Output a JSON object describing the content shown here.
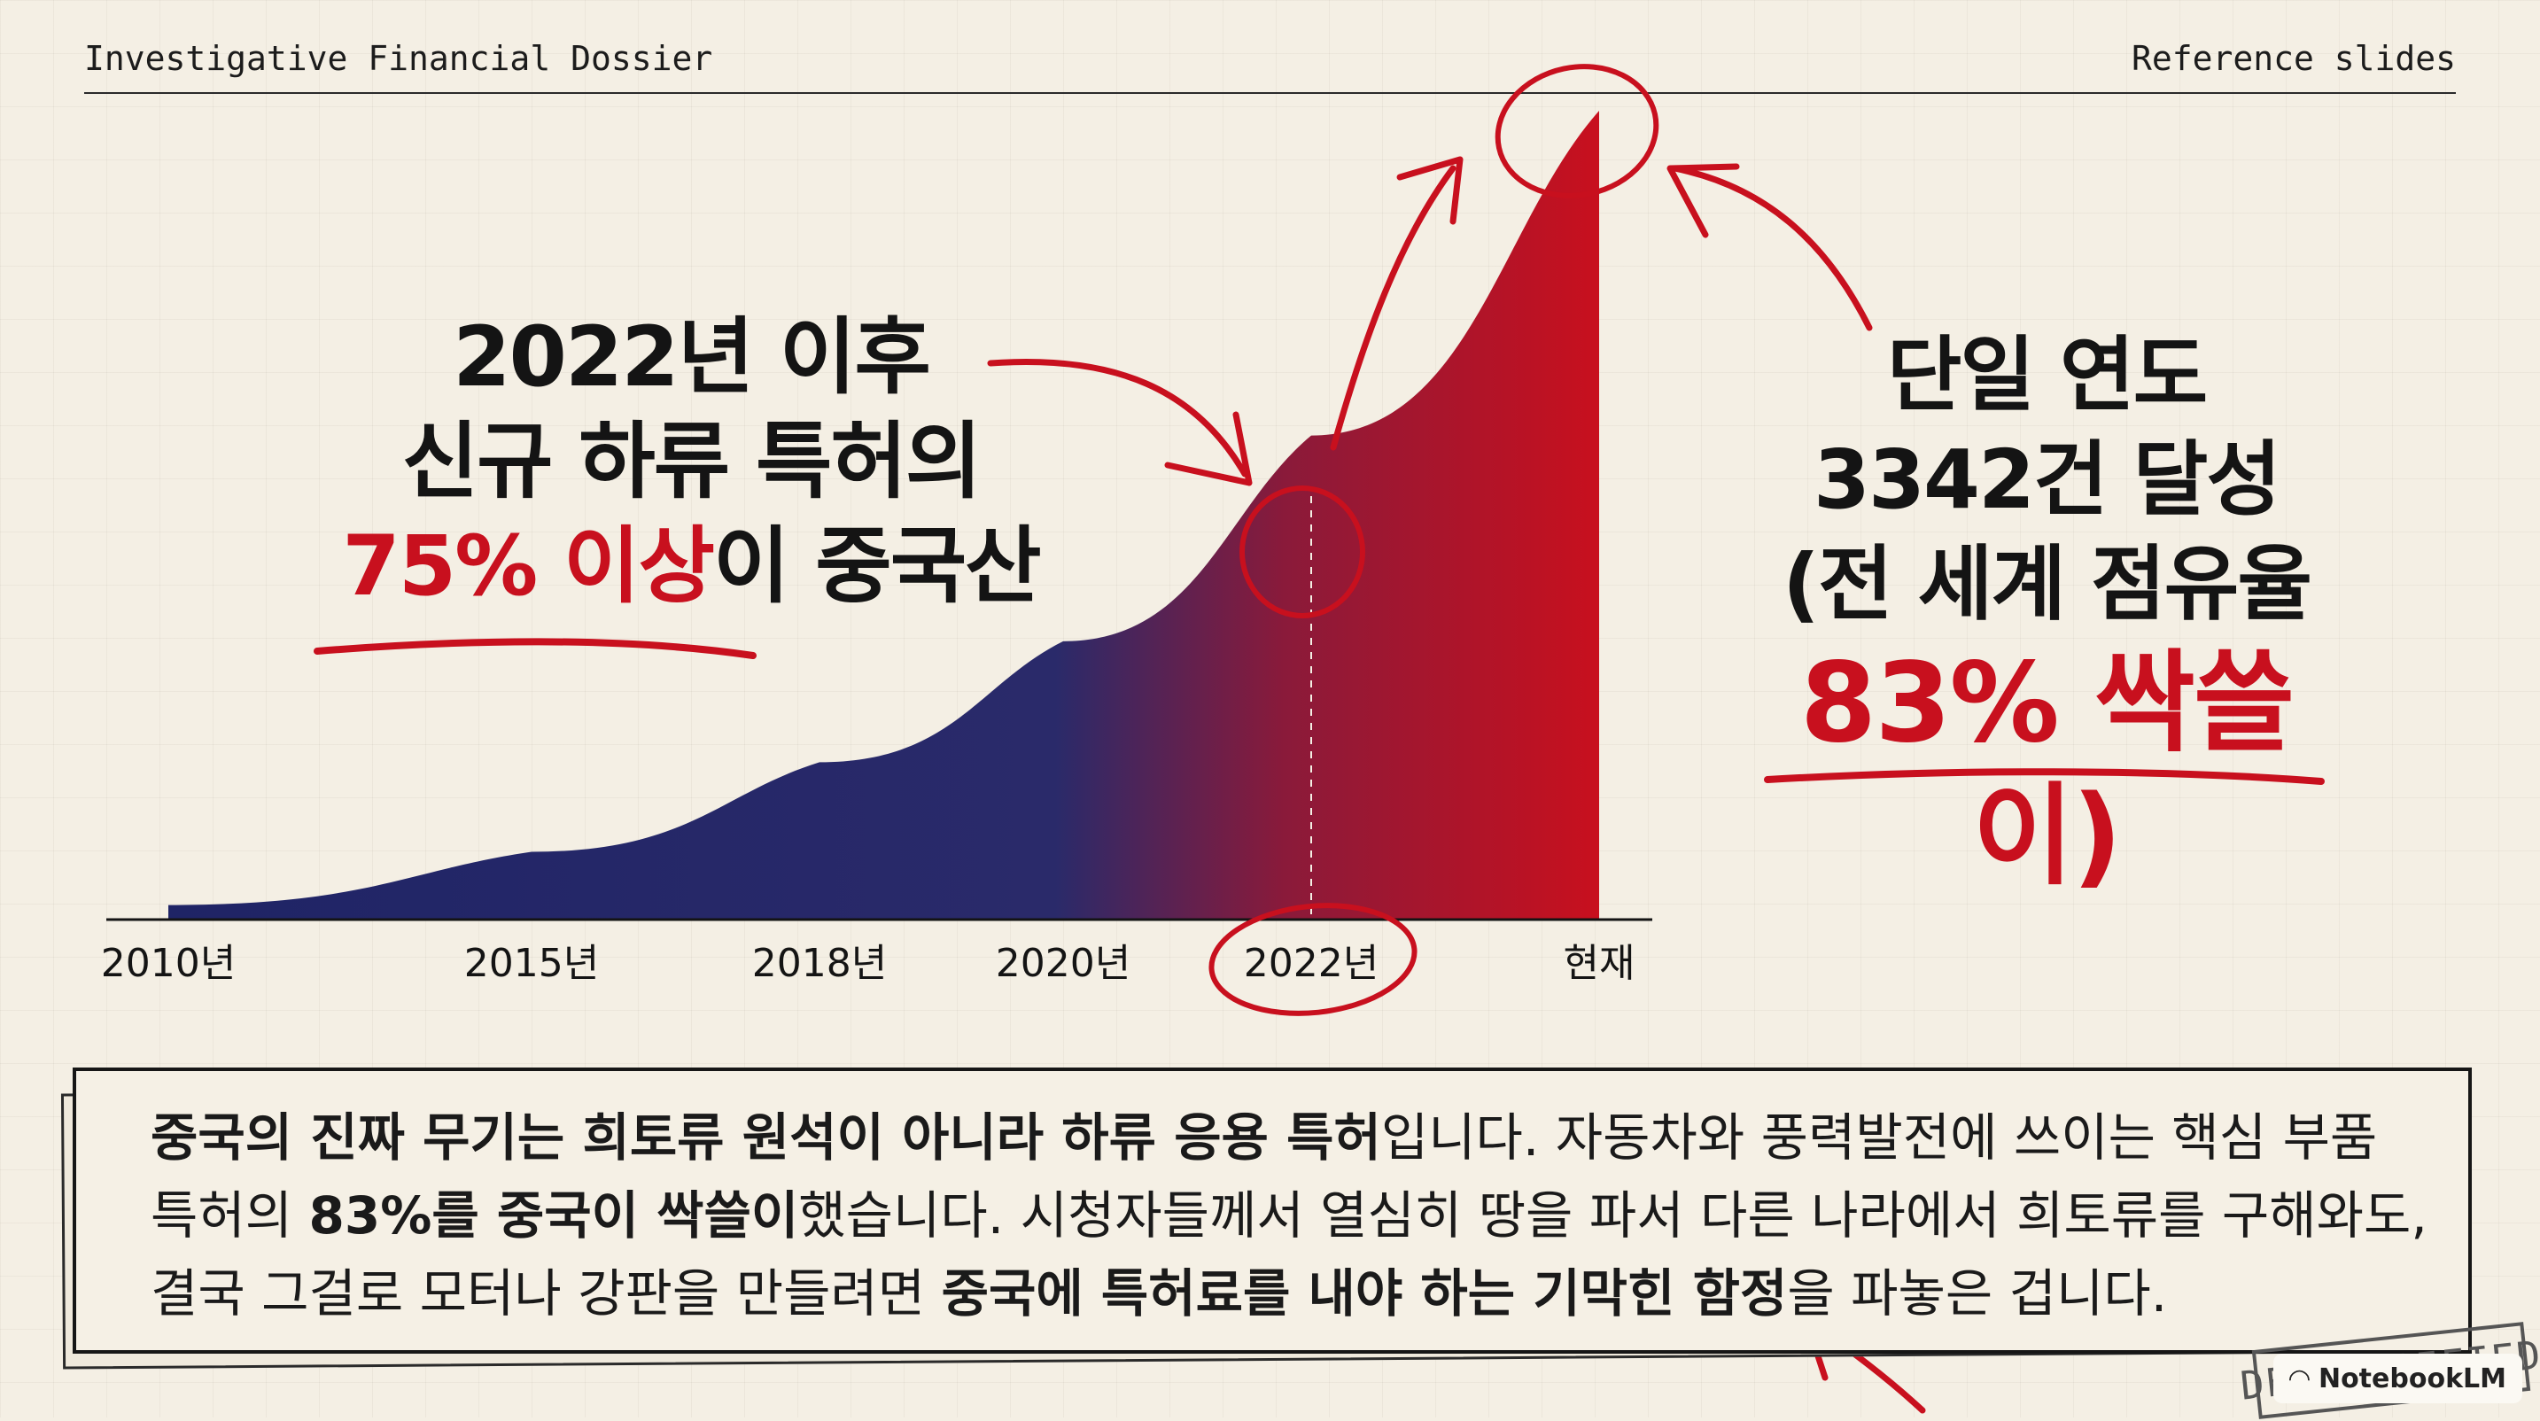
{
  "header": {
    "title": "Investigative Financial Dossier",
    "right": "Reference slides"
  },
  "callout_left": {
    "line1": "2022년 이후",
    "line2": "신규 하류 특허의",
    "line3_red": "75% 이상",
    "line3_rest": "이 중국산"
  },
  "callout_right": {
    "line1": "단일 연도",
    "line2": "3342건 달성",
    "line3": "(전 세계 점유율",
    "line4": "83% 싹쓸이)"
  },
  "chart_data": {
    "type": "area",
    "x_tick_labels": [
      "2010년",
      "2015년",
      "2018년",
      "2020년",
      "2022년",
      "현재"
    ],
    "ylim": [
      0,
      3342
    ],
    "series": [
      {
        "values": [
          60,
          280,
          650,
          1150,
          2000,
          3342
        ]
      }
    ],
    "highlighted_x": "2022년",
    "annotation": "3342건"
  },
  "body": {
    "seg1": "중국의 진짜 무기는 희토류 원석이 아니라 ",
    "seg2": "하류 응용 특허",
    "seg3": "입니다. 자동차와 풍력발전에 쓰이는 핵심 부품",
    "seg4": "특허의 ",
    "seg5": "83%",
    "seg6": "를 중국이 싹쓸이",
    "seg7": "했습니다. 시청자들께서 열심히 땅을 파서 다른 나라에서 희토류를 구해와도,",
    "seg8": "결국 그걸로 모터나 강판을 만들려면 ",
    "seg9": "중국에 특허료를 내야 하는 기막힌 함정",
    "seg10": "을 파놓은 겁니다."
  },
  "stamp": "DECLASSIFIED",
  "brand": "NotebookLM",
  "colors": {
    "accent_red": "#c8101e",
    "navy": "#1f2466",
    "ink": "#141414",
    "paper": "#f4efe4"
  }
}
